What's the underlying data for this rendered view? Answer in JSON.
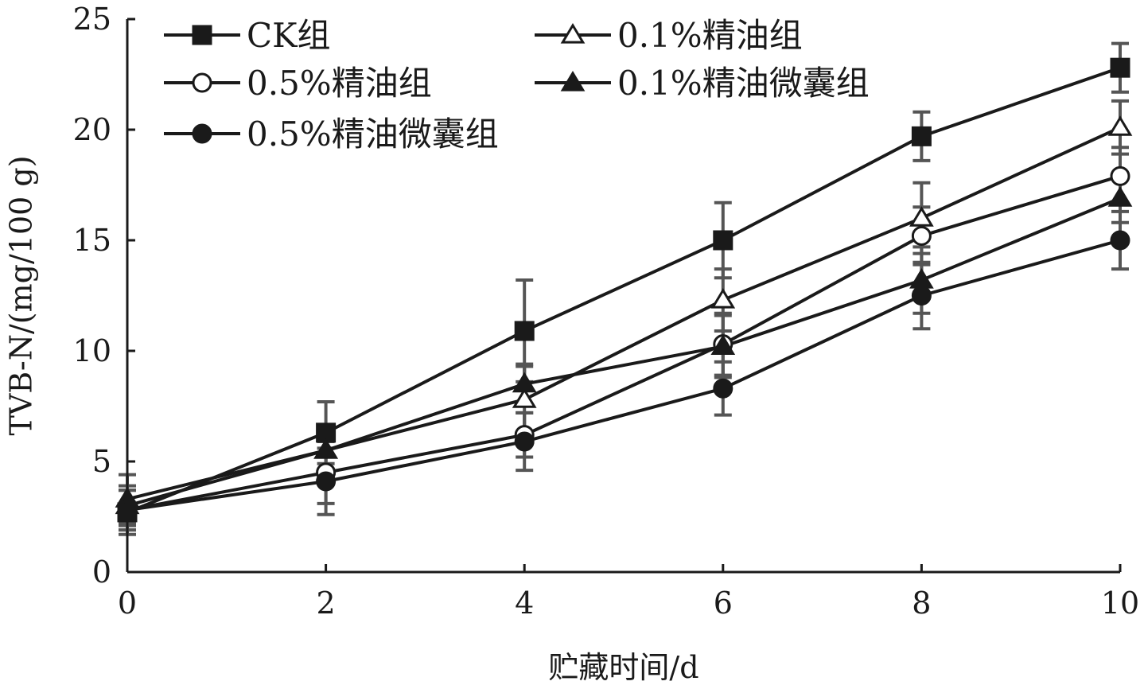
{
  "chart_data": {
    "type": "line",
    "title": "",
    "xlabel": "贮藏时间/d",
    "ylabel": "TVB-N/(mg/100 g)",
    "x": [
      0,
      2,
      4,
      6,
      8,
      10
    ],
    "xlim": [
      0,
      10
    ],
    "ylim": [
      0,
      25
    ],
    "xticks": [
      0,
      2,
      4,
      6,
      8,
      10
    ],
    "yticks": [
      0,
      5,
      10,
      15,
      20,
      25
    ],
    "grid": false,
    "legend_position": "top-left",
    "line_color": "#1a1a1a",
    "errorbar_color": "#555555",
    "series": [
      {
        "name": "CK组",
        "marker": "square",
        "marker_fill": "#1a1a1a",
        "values": [
          2.7,
          6.3,
          10.9,
          15.0,
          19.7,
          22.8
        ],
        "errors": [
          1.0,
          1.4,
          2.3,
          1.7,
          1.1,
          1.1
        ]
      },
      {
        "name": "0.1%精油组",
        "marker": "triangle",
        "marker_fill": "#ffffff",
        "values": [
          3.0,
          5.5,
          7.8,
          12.3,
          16.0,
          20.1
        ],
        "errors": [
          0.9,
          1.0,
          1.5,
          1.4,
          1.6,
          1.2
        ]
      },
      {
        "name": "0.5%精油组",
        "marker": "circle",
        "marker_fill": "#ffffff",
        "values": [
          2.8,
          4.5,
          6.2,
          10.3,
          15.2,
          17.9
        ],
        "errors": [
          0.9,
          1.4,
          1.0,
          1.4,
          1.3,
          1.3
        ]
      },
      {
        "name": "0.1%精油微囊组",
        "marker": "triangle",
        "marker_fill": "#1a1a1a",
        "values": [
          3.3,
          5.5,
          8.5,
          10.2,
          13.2,
          16.9
        ],
        "errors": [
          1.1,
          1.0,
          0.9,
          1.4,
          1.5,
          1.1
        ]
      },
      {
        "name": "0.5%精油微囊组",
        "marker": "circle",
        "marker_fill": "#1a1a1a",
        "values": [
          2.8,
          4.1,
          5.9,
          8.3,
          12.5,
          15.0
        ],
        "errors": [
          0.9,
          1.5,
          1.3,
          1.2,
          1.5,
          1.3
        ]
      }
    ]
  }
}
